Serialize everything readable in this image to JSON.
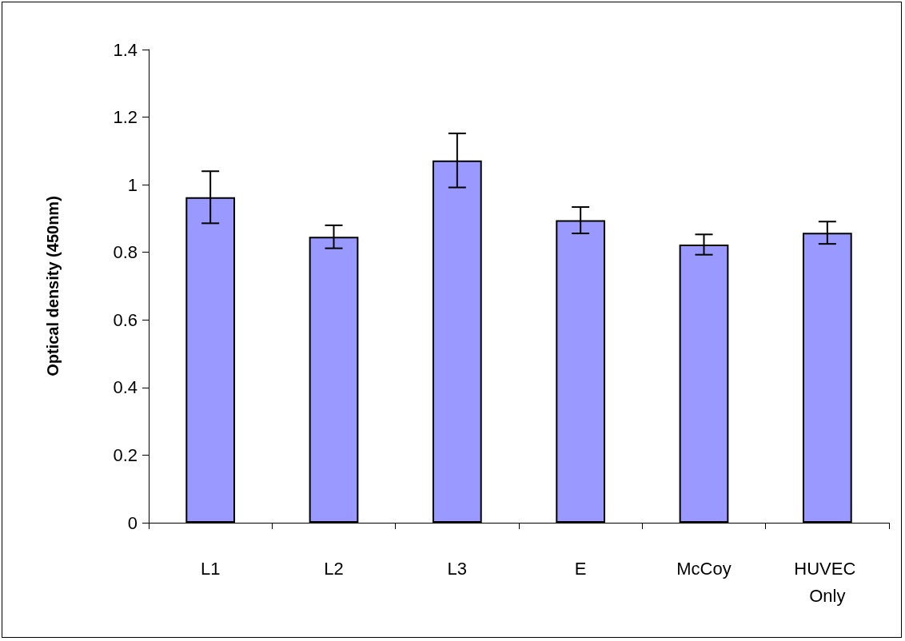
{
  "chart_data": {
    "type": "bar",
    "ylabel": "Optical density (450nm)",
    "categories": [
      "L1",
      "L2",
      "L3",
      "E",
      "McCoy",
      "HUVEC Only"
    ],
    "values": [
      0.963,
      0.846,
      1.072,
      0.895,
      0.823,
      0.858
    ],
    "errors": [
      0.077,
      0.034,
      0.08,
      0.039,
      0.03,
      0.033
    ],
    "color": "#9999ff",
    "ylim": [
      0,
      1.4
    ],
    "yticks": [
      0,
      0.2,
      0.4,
      0.6,
      0.8,
      1,
      1.2,
      1.4
    ],
    "grid": false
  }
}
